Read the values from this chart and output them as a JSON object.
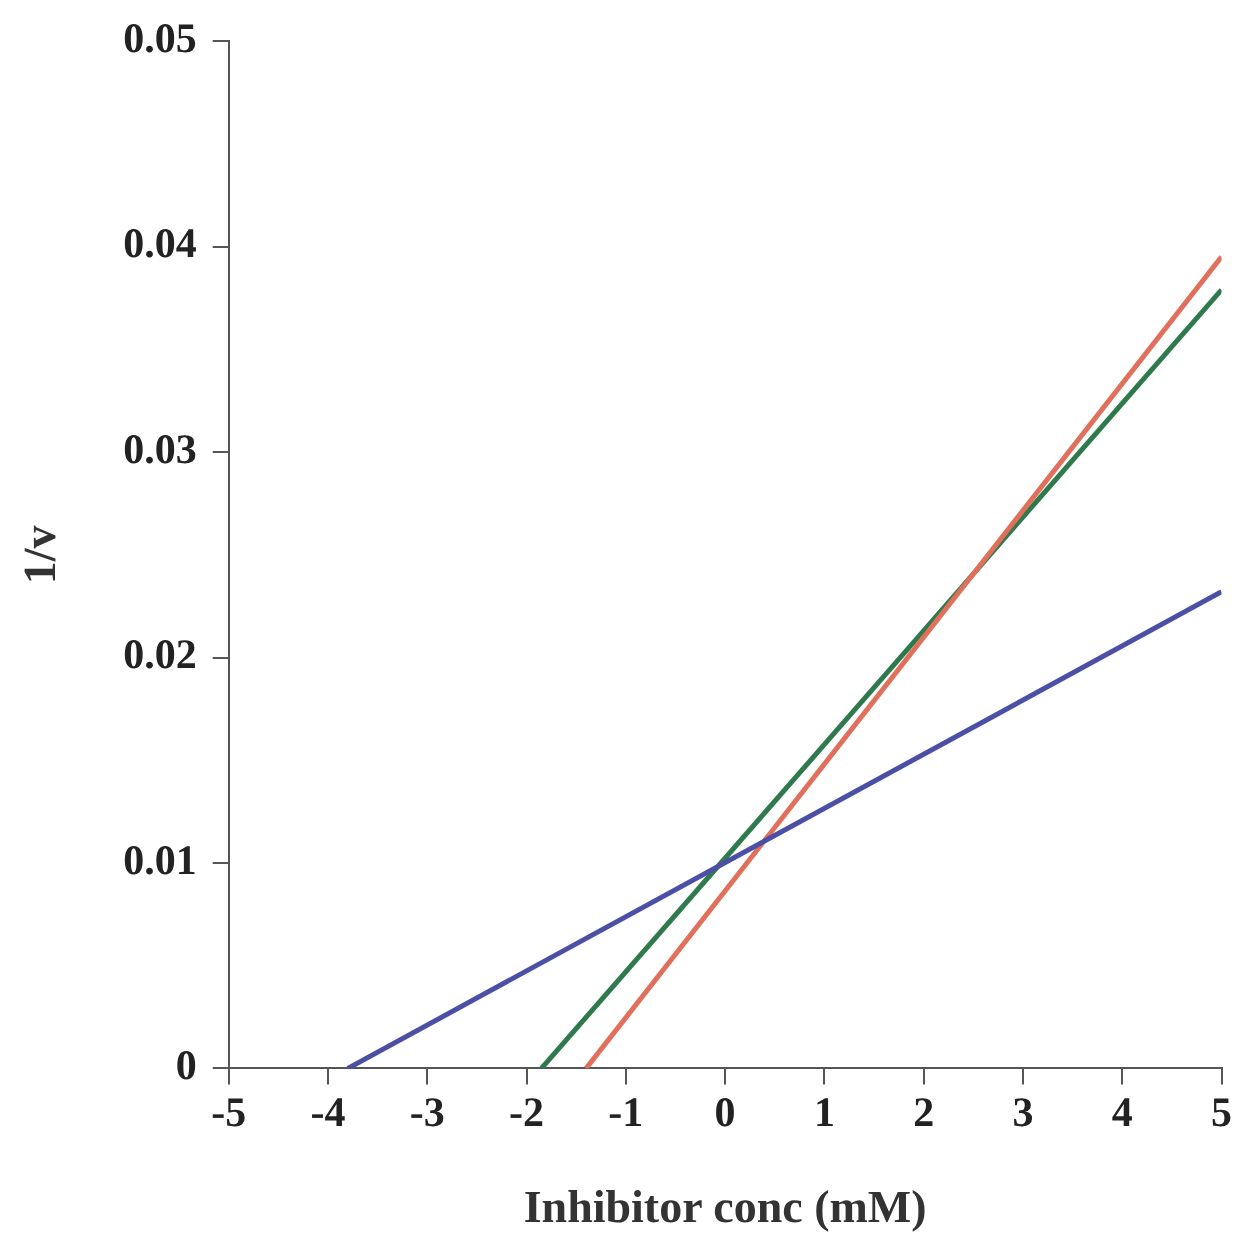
{
  "chart_data": {
    "type": "line",
    "xlabel": "Inhibitor conc (mM)",
    "ylabel": "1/v",
    "xlim": [
      -5,
      5
    ],
    "xticks": [
      -5,
      -4,
      -3,
      -2,
      -1,
      0,
      1,
      2,
      3,
      4,
      5
    ],
    "ylim": [
      0,
      0.05
    ],
    "yticks": [
      0,
      0.01,
      0.02,
      0.03,
      0.04,
      0.05
    ],
    "grid": false,
    "legend": false,
    "marker": "none",
    "line_style": "solid",
    "series": [
      {
        "color": "#4b4fa6",
        "x": [
          -3.8,
          5
        ],
        "values": [
          0,
          0.0232
        ]
      },
      {
        "color": "#e0705c",
        "x": [
          -1.4,
          5
        ],
        "values": [
          0,
          0.0395
        ]
      },
      {
        "color": "#2f7a4c",
        "x": [
          -1.85,
          5
        ],
        "values": [
          0,
          0.0379
        ]
      }
    ]
  }
}
